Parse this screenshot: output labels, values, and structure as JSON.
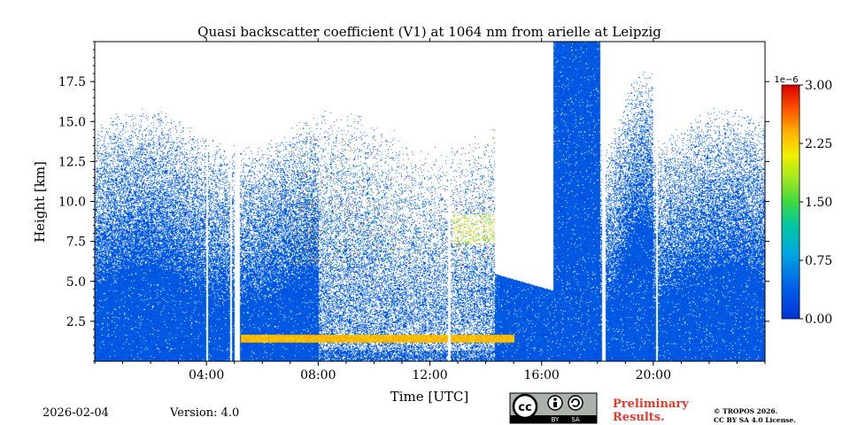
{
  "chart_data": {
    "type": "heatmap",
    "title": "Quasi backscatter coefficient (V1) at 1064 nm from arielle at Leipzig",
    "xlabel": "Time [UTC]",
    "ylabel": "Height [km]",
    "xlim_hours": [
      0,
      24
    ],
    "ylim_km": [
      0,
      20
    ],
    "x_ticks": [
      {
        "value": 4,
        "label": "04:00"
      },
      {
        "value": 8,
        "label": "08:00"
      },
      {
        "value": 12,
        "label": "12:00"
      },
      {
        "value": 16,
        "label": "16:00"
      },
      {
        "value": 20,
        "label": "20:00"
      }
    ],
    "y_ticks": [
      {
        "value": 2.5,
        "label": "2.5"
      },
      {
        "value": 5.0,
        "label": "5.0"
      },
      {
        "value": 7.5,
        "label": "7.5"
      },
      {
        "value": 10.0,
        "label": "10.0"
      },
      {
        "value": 12.5,
        "label": "12.5"
      },
      {
        "value": 15.0,
        "label": "15.0"
      },
      {
        "value": 17.5,
        "label": "17.5"
      }
    ],
    "colorbar": {
      "min": 0.0,
      "max": 3.0,
      "scale_label": "1e−6",
      "ticks": [
        {
          "value": 0.0,
          "label": "0.00"
        },
        {
          "value": 0.75,
          "label": "0.75"
        },
        {
          "value": 1.5,
          "label": "1.50"
        },
        {
          "value": 2.25,
          "label": "2.25"
        },
        {
          "value": 3.0,
          "label": "3.00"
        }
      ]
    },
    "data_gaps_hours": [
      [
        3.98,
        4.05
      ],
      [
        4.82,
        4.9
      ],
      [
        5.0,
        5.18
      ],
      [
        12.62,
        12.72
      ],
      [
        18.15,
        18.28
      ],
      [
        20.1,
        20.16
      ]
    ],
    "cloud_layer": {
      "start_hour": 12.8,
      "end_hour": 14.4,
      "base_km": 7.4,
      "top_km": 9.2
    },
    "noise_free_region": {
      "start_hour": 14.3,
      "end_hour": 16.4,
      "min_height_km": 5.5
    }
  },
  "footer": {
    "date": "2026-02-04",
    "version": "Version: 4.0",
    "preliminary": [
      "Preliminary",
      "Results."
    ],
    "copyright": [
      "© TROPOS 2026.",
      "CC BY SA 4.0 License."
    ],
    "license_badge": "cc-by-sa",
    "badge_by": "BY",
    "badge_sa": "SA"
  }
}
